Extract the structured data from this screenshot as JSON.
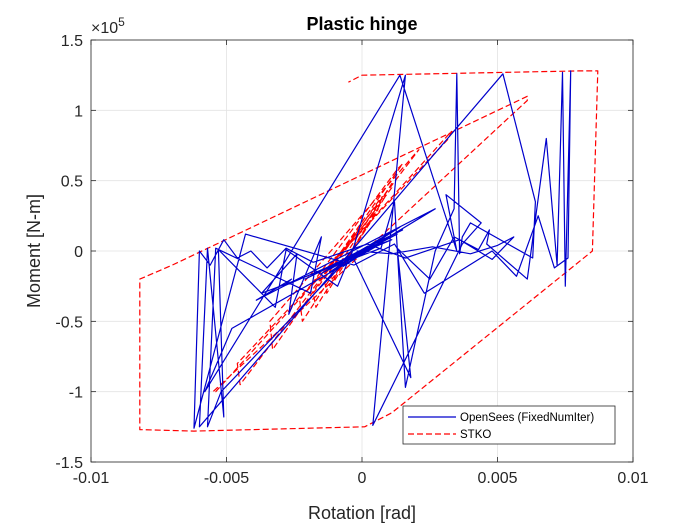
{
  "chart_data": {
    "type": "line",
    "title": "Plastic hinge",
    "xlabel": "Rotation [rad]",
    "ylabel": "Moment [N-m]",
    "y_exponent_label": "×10",
    "y_exponent_power": "5",
    "y_scale": 100000,
    "xlim": [
      -0.01,
      0.01
    ],
    "ylim": [
      -150000,
      150000
    ],
    "x_ticks": [
      -0.01,
      -0.005,
      0,
      0.005,
      0.01
    ],
    "x_tick_labels": [
      "-0.01",
      "-0.005",
      "0",
      "0.005",
      "0.01"
    ],
    "y_ticks": [
      -150000,
      -100000,
      -50000,
      0,
      50000,
      100000,
      150000
    ],
    "y_tick_labels": [
      "-1.5",
      "-1",
      "-0.5",
      "0",
      "0.5",
      "1",
      "1.5"
    ],
    "grid": true,
    "legend_position": "bottom-right",
    "series": [
      {
        "name": "OpenSees (FixedNumIter)",
        "color": "#0000cc",
        "style": "solid",
        "x": [
          -0.0004,
          0.0006,
          -0.0003,
          0.0009,
          -0.0007,
          0.0011,
          -0.0012,
          0.0014,
          -0.0015,
          0.0013,
          -0.0021,
          0.0001,
          0.0015,
          -0.0004,
          0.0011,
          -0.0029,
          -0.0026,
          -0.0039,
          0.0027,
          -0.0003,
          0.0005,
          -0.0048,
          -0.0058,
          0.0014,
          0.0035,
          0.0031,
          0.0044,
          0.0037,
          0.0004,
          0.0016,
          -0.0004,
          -0.0052,
          -0.0057,
          -0.0054,
          -0.0019,
          -0.0015,
          -0.0027,
          -0.0024,
          -0.0037,
          0.0007,
          0.0012,
          0.0016,
          0.0027,
          0.0034,
          0.0035,
          0.0036,
          0.0037,
          0.004,
          0.0063,
          0.0064,
          0.0052,
          -0.0003,
          -0.006,
          -0.0057,
          -0.0051,
          -0.0053,
          -0.0032,
          -0.0028,
          -0.0009,
          -0.0004,
          0.0018,
          0.0013,
          0.0025,
          0.0034,
          0.0043,
          0.0047,
          0.0046,
          0.0061,
          0.0068,
          0.0072,
          0.0074,
          0.0075,
          0.0077,
          0.0076,
          0.0071,
          0.0065,
          0.0057,
          0.0048,
          0.0023,
          0.0012,
          -0.0003,
          -0.0043,
          -0.0062,
          -0.006,
          -0.0056,
          -0.0051,
          -0.0046,
          -0.0041,
          -0.0035,
          -0.0028,
          -0.0018,
          0.0002,
          0.0016,
          0.0036,
          0.0048,
          0.0056,
          0.005,
          0.004,
          0.0026,
          0.0011,
          -0.0002
        ],
        "y": [
          -4000,
          5000,
          -6000,
          9000,
          -11000,
          14000,
          -15000,
          17000,
          -16000,
          12000,
          -20000,
          2000,
          15000,
          -3000,
          8000,
          -25000,
          -20000,
          -35000,
          30000,
          -5000,
          3000,
          -55000,
          -100000,
          125000,
          0,
          40000,
          20000,
          5000,
          -124000,
          125000,
          -3000,
          -100000,
          -125000,
          2000,
          -30000,
          10000,
          -45000,
          -2000,
          -30000,
          2000,
          35000,
          -97000,
          0,
          30000,
          126000,
          -2000,
          10000,
          20000,
          -5000,
          35000,
          126000,
          2000,
          -125000,
          2000,
          -118000,
          1000,
          -40000,
          1000,
          -25000,
          -2000,
          -90000,
          2000,
          -20000,
          10000,
          1000,
          15000,
          5000,
          -20000,
          80000,
          -10000,
          127000,
          -25000,
          128000,
          -5000,
          -12000,
          25000,
          -18000,
          0,
          -30000,
          5000,
          -10000,
          12000,
          -126000,
          0,
          -10000,
          8000,
          -5000,
          0,
          -12000,
          2000,
          -8000,
          5000,
          -5000,
          8000,
          -6000,
          10000,
          4000,
          -2000,
          3000,
          -2000,
          0
        ]
      },
      {
        "name": "STKO",
        "color": "#ff0000",
        "style": "dashed",
        "x": [
          0.0003,
          -0.0009,
          -0.001,
          0.0002,
          0.0003,
          -0.0011,
          -0.0012,
          0.0005,
          0.0006,
          -0.0013,
          -0.0014,
          0.0007,
          0.0009,
          -0.0017,
          -0.0018,
          0.0011,
          0.0011,
          -0.0022,
          -0.0023,
          0.0013,
          0.0015,
          -0.0033,
          -0.0034,
          0.002,
          0.0021,
          -0.0045,
          -0.0046,
          0.0032,
          0.0033,
          -0.0054,
          -0.0055,
          0.0061,
          0.0061,
          -0.007,
          -0.0082,
          -0.0082,
          -0.0062,
          0.0001,
          0.0011,
          0.0085,
          0.0087,
          0.008,
          0.0,
          -0.0005
        ],
        "y": [
          3000,
          -12000,
          -5000,
          18000,
          20000,
          -20000,
          -10000,
          28000,
          30000,
          -30000,
          -20000,
          38000,
          40000,
          -40000,
          -30000,
          45000,
          48000,
          -50000,
          -35000,
          58000,
          62000,
          -70000,
          -50000,
          70000,
          72000,
          -95000,
          -80000,
          80000,
          85000,
          -100000,
          -100000,
          107000,
          110000,
          -10000,
          -20000,
          -127000,
          -128000,
          -125000,
          -115000,
          0,
          128000,
          128000,
          125000,
          120000
        ]
      }
    ]
  }
}
